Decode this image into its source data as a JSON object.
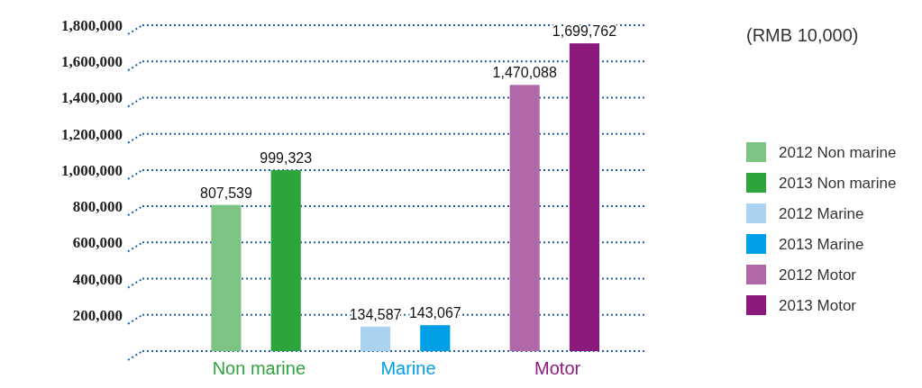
{
  "chart_data": {
    "type": "bar",
    "categories": [
      "Non marine",
      "Marine",
      "Motor"
    ],
    "series": [
      {
        "name": "2012 Non marine",
        "color": "#7dc383",
        "values": [
          807539,
          null,
          null
        ],
        "value_labels": [
          "807,539",
          null,
          null
        ]
      },
      {
        "name": "2013 Non marine",
        "color": "#2ea43c",
        "values": [
          999323,
          null,
          null
        ],
        "value_labels": [
          "999,323",
          null,
          null
        ]
      },
      {
        "name": "2012 Marine",
        "color": "#a9d3f0",
        "values": [
          null,
          134587,
          null
        ],
        "value_labels": [
          null,
          "134,587",
          null
        ]
      },
      {
        "name": "2013 Marine",
        "color": "#00a0e6",
        "values": [
          null,
          143067,
          null
        ],
        "value_labels": [
          null,
          "143,067",
          null
        ]
      },
      {
        "name": "2012 Motor",
        "color": "#b068a8",
        "values": [
          null,
          null,
          1470088
        ],
        "value_labels": [
          null,
          null,
          "1,470,088"
        ]
      },
      {
        "name": "2013 Motor",
        "color": "#8b1a7c",
        "values": [
          null,
          null,
          1699762
        ],
        "value_labels": [
          null,
          null,
          "1,699,762"
        ]
      }
    ],
    "ylim": [
      0,
      1800000
    ],
    "yticks": [
      {
        "value": 0,
        "label": null
      },
      {
        "value": 200000,
        "label": "200,000"
      },
      {
        "value": 400000,
        "label": "400,000"
      },
      {
        "value": 600000,
        "label": "600,000"
      },
      {
        "value": 800000,
        "label": "800,000"
      },
      {
        "value": 1000000,
        "label": "1,000,000"
      },
      {
        "value": 1200000,
        "label": "1,200,000"
      },
      {
        "value": 1400000,
        "label": "1,400,000"
      },
      {
        "value": 1600000,
        "label": "1,600,000"
      },
      {
        "value": 1800000,
        "label": "1,800,000"
      }
    ],
    "grid": "y",
    "legend": "right",
    "annotations": [
      "(RMB 10,000)"
    ]
  }
}
